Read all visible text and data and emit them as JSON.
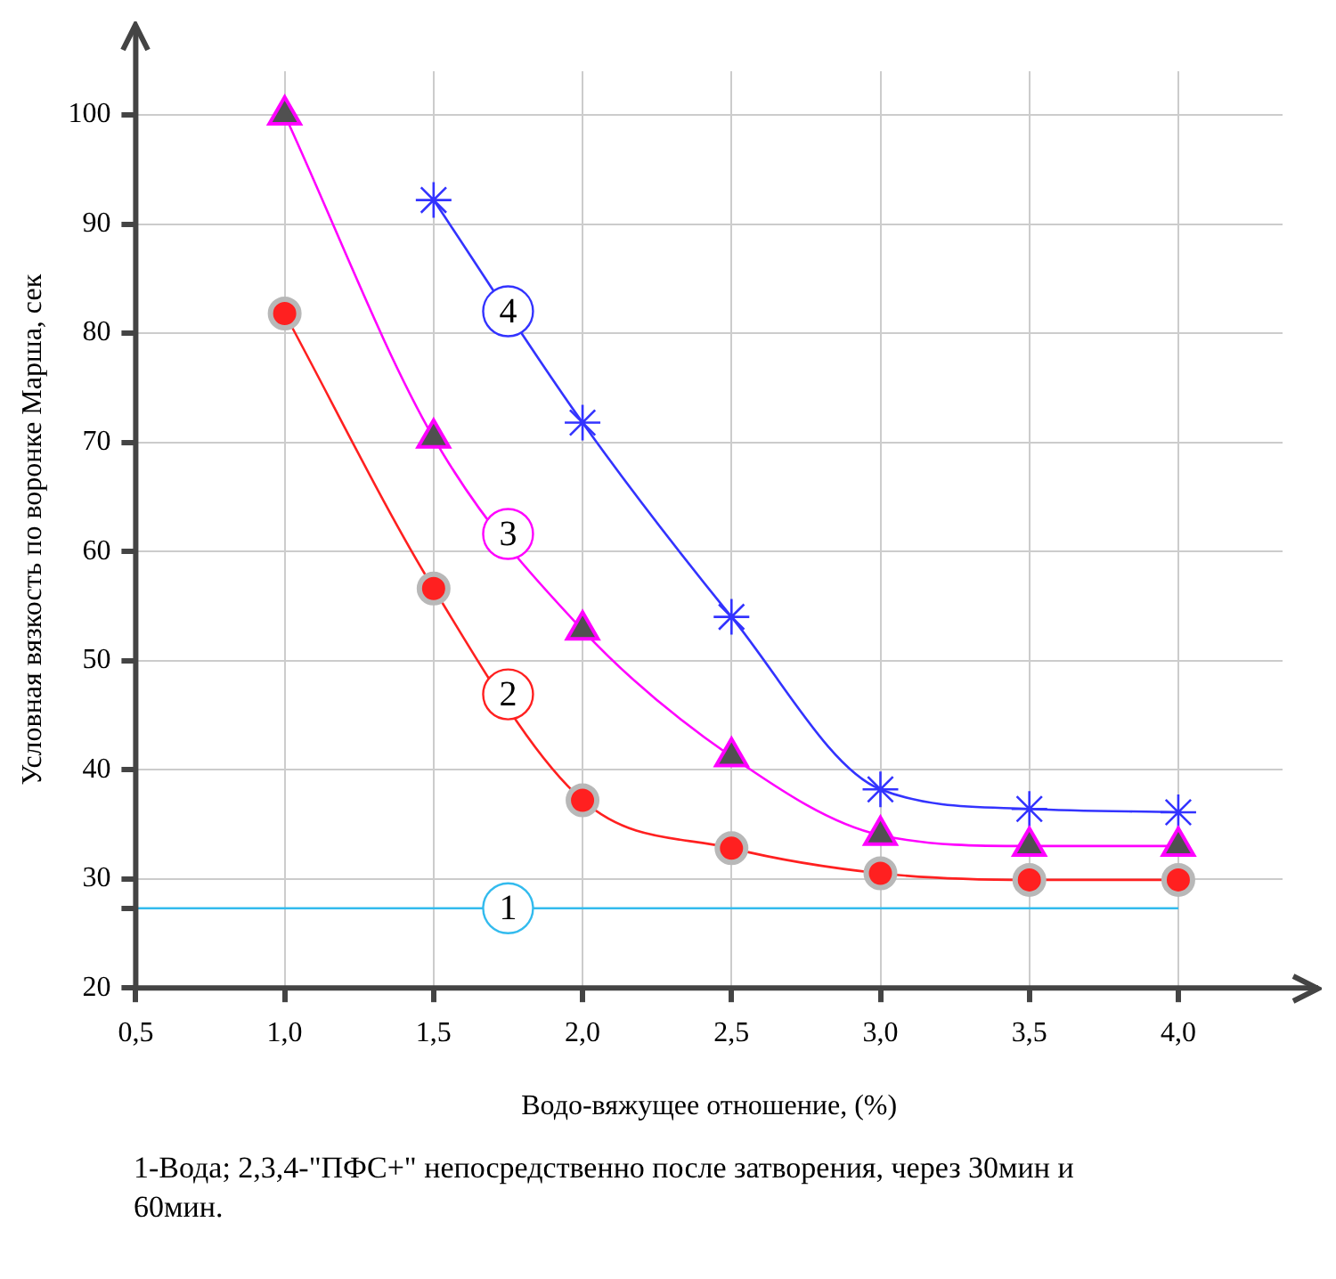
{
  "chart_data": {
    "type": "line",
    "xlabel": "Водо-вяжущее отношение, (%)",
    "ylabel": "Условная вязкость по воронке Марша, сек",
    "annotations": [
      "1-Вода; 2,3,4-\"ПФС+\" непосредственно после затворения, через 30мин и 60мин."
    ],
    "series": [
      {
        "name": "1",
        "color": "#33bbee",
        "marker": "none",
        "x": [
          0.5,
          1.0,
          1.5,
          2.0,
          2.5,
          3.0,
          3.5,
          4.0
        ],
        "values": [
          27.3,
          27.3,
          27.3,
          27.3,
          27.3,
          27.3,
          27.3,
          27.3
        ]
      },
      {
        "name": "2",
        "color": "#ff2020",
        "marker": "circle",
        "x": [
          1.0,
          1.5,
          2.0,
          2.5,
          3.0,
          3.5,
          4.0
        ],
        "values": [
          81.8,
          56.6,
          37.2,
          32.8,
          30.5,
          29.9,
          29.9
        ]
      },
      {
        "name": "3",
        "color": "#ff00ff",
        "marker": "triangle",
        "x": [
          1.0,
          1.5,
          2.0,
          2.5,
          3.0,
          3.5,
          4.0
        ],
        "values": [
          100,
          70.4,
          52.8,
          41.2,
          34.0,
          33.0,
          33.0
        ]
      },
      {
        "name": "4",
        "color": "#3333ff",
        "marker": "cross",
        "x": [
          1.5,
          2.0,
          2.5,
          3.0,
          3.5,
          4.0
        ],
        "values": [
          92.2,
          71.8,
          54.0,
          38.2,
          36.4,
          36.1
        ]
      }
    ],
    "xlim": [
      0.5,
      4.35
    ],
    "xticks": [
      {
        "value": 0.5,
        "label": "0,5"
      },
      {
        "value": 1.0,
        "label": "1,0"
      },
      {
        "value": 1.5,
        "label": "1,5"
      },
      {
        "value": 2.0,
        "label": "2,0"
      },
      {
        "value": 2.5,
        "label": "2,5"
      },
      {
        "value": 3.0,
        "label": "3,0"
      },
      {
        "value": 3.5,
        "label": "3,5"
      },
      {
        "value": 4.0,
        "label": "4,0"
      }
    ],
    "ylim": [
      20,
      104
    ],
    "yticks": [
      20,
      {
        "value": 27.3,
        "label": null
      },
      30,
      40,
      50,
      60,
      70,
      80,
      90,
      100
    ],
    "grid": true,
    "legend": false
  }
}
